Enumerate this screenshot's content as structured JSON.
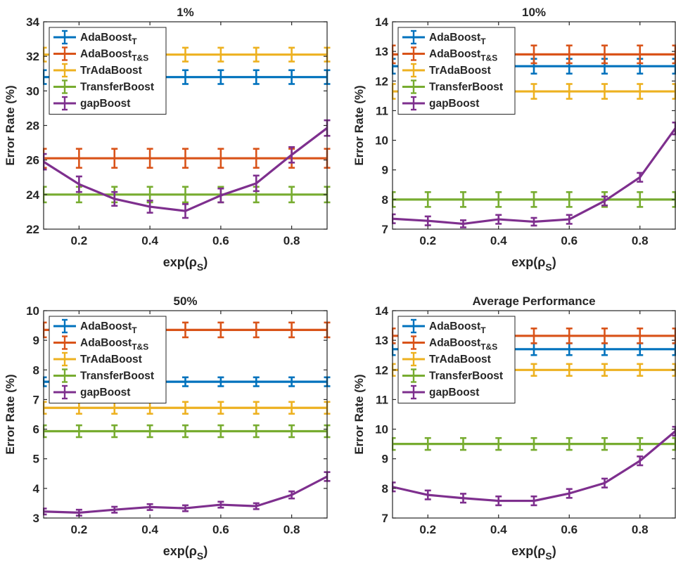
{
  "figure": {
    "legend_entries": [
      {
        "base": "AdaBoost",
        "sub": "T",
        "color": "#0072BD"
      },
      {
        "base": "AdaBoost",
        "sub": "T&S",
        "color": "#D95319"
      },
      {
        "base": "TrAdaBoost",
        "sub": "",
        "color": "#EDB120"
      },
      {
        "base": "TransferBoost",
        "sub": "",
        "color": "#77AC30"
      },
      {
        "base": "gapBoost",
        "sub": "",
        "color": "#7E2F8E"
      }
    ]
  },
  "chart_data": [
    {
      "type": "line",
      "title": "1%",
      "xlabel": "exp(ρ",
      "xlabel_sub": "S",
      "xlabel_end": ")",
      "ylabel": "Error Rate (%)",
      "xlim": [
        0.1,
        0.9
      ],
      "ylim": [
        22,
        34
      ],
      "xticks": [
        0.2,
        0.4,
        0.6,
        0.8
      ],
      "yticks": [
        22,
        24,
        26,
        28,
        30,
        32,
        34
      ],
      "x": [
        0.1,
        0.2,
        0.3,
        0.4,
        0.5,
        0.6,
        0.7,
        0.8,
        0.9
      ],
      "legend_position": "top-left",
      "series": [
        {
          "name": "AdaBoost_T",
          "color": "#0072BD",
          "values": [
            30.8,
            30.8,
            30.8,
            30.8,
            30.8,
            30.8,
            30.8,
            30.8,
            30.8
          ],
          "error": [
            0.4,
            0.4,
            0.4,
            0.4,
            0.4,
            0.4,
            0.4,
            0.4,
            0.4
          ]
        },
        {
          "name": "AdaBoost_T&S",
          "color": "#D95319",
          "values": [
            26.1,
            26.1,
            26.1,
            26.1,
            26.1,
            26.1,
            26.1,
            26.1,
            26.1
          ],
          "error": [
            0.55,
            0.55,
            0.55,
            0.55,
            0.55,
            0.55,
            0.55,
            0.55,
            0.55
          ]
        },
        {
          "name": "TrAdaBoost",
          "color": "#EDB120",
          "values": [
            32.1,
            32.1,
            32.1,
            32.1,
            32.1,
            32.1,
            32.1,
            32.1,
            32.1
          ],
          "error": [
            0.4,
            0.4,
            0.4,
            0.4,
            0.4,
            0.4,
            0.4,
            0.4,
            0.4
          ]
        },
        {
          "name": "TransferBoost",
          "color": "#77AC30",
          "values": [
            24.0,
            24.0,
            24.0,
            24.0,
            24.0,
            24.0,
            24.0,
            24.0,
            24.0
          ],
          "error": [
            0.45,
            0.45,
            0.45,
            0.45,
            0.45,
            0.45,
            0.45,
            0.45,
            0.45
          ]
        },
        {
          "name": "gapBoost",
          "color": "#7E2F8E",
          "values": [
            25.9,
            24.6,
            23.75,
            23.3,
            23.05,
            23.95,
            24.65,
            26.3,
            27.85
          ],
          "error": [
            0.45,
            0.45,
            0.4,
            0.35,
            0.4,
            0.4,
            0.45,
            0.45,
            0.45
          ]
        }
      ]
    },
    {
      "type": "line",
      "title": "10%",
      "xlabel": "exp(ρ",
      "xlabel_sub": "S",
      "xlabel_end": ")",
      "ylabel": "Error Rate (%)",
      "xlim": [
        0.1,
        0.9
      ],
      "ylim": [
        7,
        14
      ],
      "xticks": [
        0.2,
        0.4,
        0.6,
        0.8
      ],
      "yticks": [
        7,
        8,
        9,
        10,
        11,
        12,
        13,
        14
      ],
      "x": [
        0.1,
        0.2,
        0.3,
        0.4,
        0.5,
        0.6,
        0.7,
        0.8,
        0.9
      ],
      "legend_position": "top-left",
      "series": [
        {
          "name": "AdaBoost_T",
          "color": "#0072BD",
          "values": [
            12.5,
            12.5,
            12.5,
            12.5,
            12.5,
            12.5,
            12.5,
            12.5,
            12.5
          ],
          "error": [
            0.25,
            0.25,
            0.25,
            0.25,
            0.25,
            0.25,
            0.25,
            0.25,
            0.25
          ]
        },
        {
          "name": "AdaBoost_T&S",
          "color": "#D95319",
          "values": [
            12.9,
            12.9,
            12.9,
            12.9,
            12.9,
            12.9,
            12.9,
            12.9,
            12.9
          ],
          "error": [
            0.3,
            0.3,
            0.3,
            0.3,
            0.3,
            0.3,
            0.3,
            0.3,
            0.3
          ]
        },
        {
          "name": "TrAdaBoost",
          "color": "#EDB120",
          "values": [
            11.65,
            11.65,
            11.65,
            11.65,
            11.65,
            11.65,
            11.65,
            11.65,
            11.65
          ],
          "error": [
            0.25,
            0.25,
            0.25,
            0.25,
            0.25,
            0.25,
            0.25,
            0.25,
            0.25
          ]
        },
        {
          "name": "TransferBoost",
          "color": "#77AC30",
          "values": [
            8.0,
            8.0,
            8.0,
            8.0,
            8.0,
            8.0,
            8.0,
            8.0,
            8.0
          ],
          "error": [
            0.25,
            0.25,
            0.25,
            0.25,
            0.25,
            0.25,
            0.25,
            0.25,
            0.25
          ]
        },
        {
          "name": "gapBoost",
          "color": "#7E2F8E",
          "values": [
            7.35,
            7.28,
            7.18,
            7.33,
            7.25,
            7.33,
            7.95,
            8.75,
            10.4
          ],
          "error": [
            0.15,
            0.15,
            0.12,
            0.15,
            0.13,
            0.15,
            0.15,
            0.15,
            0.2
          ]
        }
      ]
    },
    {
      "type": "line",
      "title": "50%",
      "xlabel": "exp(ρ",
      "xlabel_sub": "S",
      "xlabel_end": ")",
      "ylabel": "Error Rate (%)",
      "xlim": [
        0.1,
        0.9
      ],
      "ylim": [
        3,
        10
      ],
      "xticks": [
        0.2,
        0.4,
        0.6,
        0.8
      ],
      "yticks": [
        3,
        4,
        5,
        6,
        7,
        8,
        9,
        10
      ],
      "x": [
        0.1,
        0.2,
        0.3,
        0.4,
        0.5,
        0.6,
        0.7,
        0.8,
        0.9
      ],
      "legend_position": "top-left",
      "series": [
        {
          "name": "AdaBoost_T",
          "color": "#0072BD",
          "values": [
            7.6,
            7.6,
            7.6,
            7.6,
            7.6,
            7.6,
            7.6,
            7.6,
            7.6
          ],
          "error": [
            0.15,
            0.15,
            0.15,
            0.15,
            0.15,
            0.15,
            0.15,
            0.15,
            0.15
          ]
        },
        {
          "name": "AdaBoost_T&S",
          "color": "#D95319",
          "values": [
            9.35,
            9.35,
            9.35,
            9.35,
            9.35,
            9.35,
            9.35,
            9.35,
            9.35
          ],
          "error": [
            0.25,
            0.25,
            0.25,
            0.25,
            0.25,
            0.25,
            0.25,
            0.25,
            0.25
          ]
        },
        {
          "name": "TrAdaBoost",
          "color": "#EDB120",
          "values": [
            6.72,
            6.72,
            6.72,
            6.72,
            6.72,
            6.72,
            6.72,
            6.72,
            6.72
          ],
          "error": [
            0.2,
            0.2,
            0.2,
            0.2,
            0.2,
            0.2,
            0.2,
            0.2,
            0.2
          ]
        },
        {
          "name": "TransferBoost",
          "color": "#77AC30",
          "values": [
            5.93,
            5.93,
            5.93,
            5.93,
            5.93,
            5.93,
            5.93,
            5.93,
            5.93
          ],
          "error": [
            0.2,
            0.2,
            0.2,
            0.2,
            0.2,
            0.2,
            0.2,
            0.2,
            0.2
          ]
        },
        {
          "name": "gapBoost",
          "color": "#7E2F8E",
          "values": [
            3.22,
            3.18,
            3.28,
            3.37,
            3.33,
            3.45,
            3.4,
            3.78,
            4.4
          ],
          "error": [
            0.1,
            0.1,
            0.1,
            0.1,
            0.1,
            0.1,
            0.1,
            0.12,
            0.15
          ]
        }
      ]
    },
    {
      "type": "line",
      "title": "Average Performance",
      "xlabel": "exp(ρ",
      "xlabel_sub": "S",
      "xlabel_end": ")",
      "ylabel": "Error Rate (%)",
      "xlim": [
        0.1,
        0.9
      ],
      "ylim": [
        7,
        14
      ],
      "xticks": [
        0.2,
        0.4,
        0.6,
        0.8
      ],
      "yticks": [
        7,
        8,
        9,
        10,
        11,
        12,
        13,
        14
      ],
      "x": [
        0.1,
        0.2,
        0.3,
        0.4,
        0.5,
        0.6,
        0.7,
        0.8,
        0.9
      ],
      "legend_position": "top-left",
      "series": [
        {
          "name": "AdaBoost_T",
          "color": "#0072BD",
          "values": [
            12.7,
            12.7,
            12.7,
            12.7,
            12.7,
            12.7,
            12.7,
            12.7,
            12.7
          ],
          "error": [
            0.2,
            0.2,
            0.2,
            0.2,
            0.2,
            0.2,
            0.2,
            0.2,
            0.2
          ]
        },
        {
          "name": "AdaBoost_T&S",
          "color": "#D95319",
          "values": [
            13.15,
            13.15,
            13.15,
            13.15,
            13.15,
            13.15,
            13.15,
            13.15,
            13.15
          ],
          "error": [
            0.25,
            0.25,
            0.25,
            0.25,
            0.25,
            0.25,
            0.25,
            0.25,
            0.25
          ]
        },
        {
          "name": "TrAdaBoost",
          "color": "#EDB120",
          "values": [
            12.0,
            12.0,
            12.0,
            12.0,
            12.0,
            12.0,
            12.0,
            12.0,
            12.0
          ],
          "error": [
            0.2,
            0.2,
            0.2,
            0.2,
            0.2,
            0.2,
            0.2,
            0.2,
            0.2
          ]
        },
        {
          "name": "TransferBoost",
          "color": "#77AC30",
          "values": [
            9.5,
            9.5,
            9.5,
            9.5,
            9.5,
            9.5,
            9.5,
            9.5,
            9.5
          ],
          "error": [
            0.2,
            0.2,
            0.2,
            0.2,
            0.2,
            0.2,
            0.2,
            0.2,
            0.2
          ]
        },
        {
          "name": "gapBoost",
          "color": "#7E2F8E",
          "values": [
            8.05,
            7.78,
            7.67,
            7.58,
            7.58,
            7.83,
            8.18,
            8.93,
            9.93
          ],
          "error": [
            0.15,
            0.15,
            0.15,
            0.15,
            0.15,
            0.15,
            0.15,
            0.15,
            0.15
          ]
        }
      ]
    }
  ]
}
